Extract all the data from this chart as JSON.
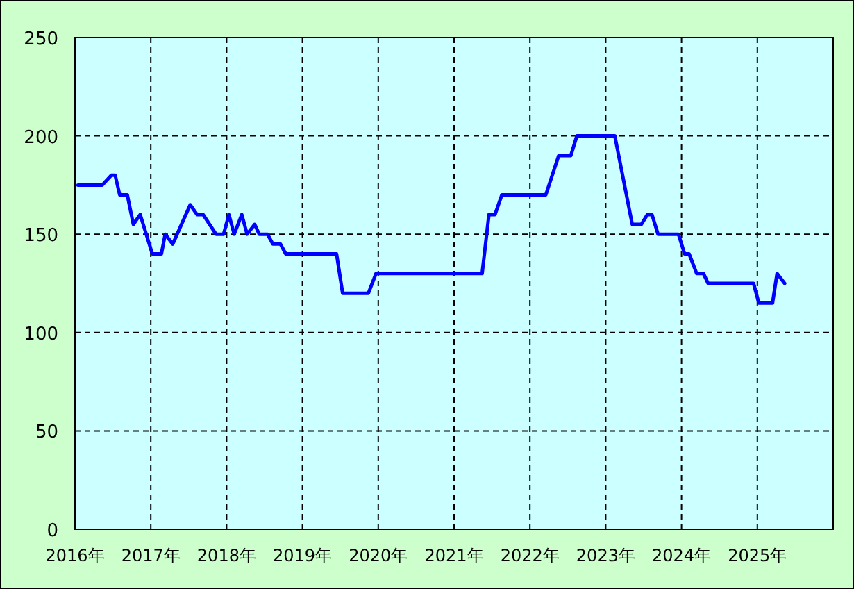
{
  "chart_data": {
    "type": "line",
    "x": [
      2016.04,
      2016.36,
      2016.48,
      2016.53,
      2016.59,
      2016.69,
      2016.77,
      2016.86,
      2017.02,
      2017.14,
      2017.19,
      2017.29,
      2017.52,
      2017.61,
      2017.69,
      2017.86,
      2017.96,
      2018.03,
      2018.1,
      2018.2,
      2018.27,
      2018.37,
      2018.43,
      2018.54,
      2018.61,
      2018.71,
      2018.78,
      2019.45,
      2019.53,
      2019.87,
      2019.97,
      2021.37,
      2021.46,
      2021.54,
      2021.63,
      2022.21,
      2022.38,
      2022.54,
      2022.62,
      2023.12,
      2023.35,
      2023.47,
      2023.55,
      2023.61,
      2023.69,
      2023.96,
      2024.04,
      2024.1,
      2024.2,
      2024.29,
      2024.35,
      2024.95,
      2025.02,
      2025.2,
      2025.26,
      2025.36
    ],
    "values": [
      175,
      175,
      180,
      180,
      170,
      170,
      155,
      160,
      140,
      140,
      150,
      145,
      165,
      160,
      160,
      150,
      150,
      160,
      150,
      160,
      150,
      155,
      150,
      150,
      145,
      145,
      140,
      140,
      120,
      120,
      130,
      130,
      160,
      160,
      170,
      170,
      190,
      190,
      200,
      200,
      155,
      155,
      160,
      160,
      150,
      150,
      140,
      140,
      130,
      130,
      125,
      125,
      115,
      115,
      130,
      125
    ],
    "color": "#0000ff",
    "xlim": [
      2016,
      2026
    ],
    "xticks": [
      {
        "value": 2016,
        "label": "2016年"
      },
      {
        "value": 2017,
        "label": "2017年"
      },
      {
        "value": 2018,
        "label": "2018年"
      },
      {
        "value": 2019,
        "label": "2019年"
      },
      {
        "value": 2020,
        "label": "2020年"
      },
      {
        "value": 2021,
        "label": "2021年"
      },
      {
        "value": 2022,
        "label": "2022年"
      },
      {
        "value": 2023,
        "label": "2023年"
      },
      {
        "value": 2024,
        "label": "2024年"
      },
      {
        "value": 2025,
        "label": "2025年"
      }
    ],
    "ylim": [
      0,
      250
    ],
    "yticks": [
      0,
      50,
      100,
      150,
      200,
      250
    ],
    "grid": true,
    "line_style": "solid"
  }
}
